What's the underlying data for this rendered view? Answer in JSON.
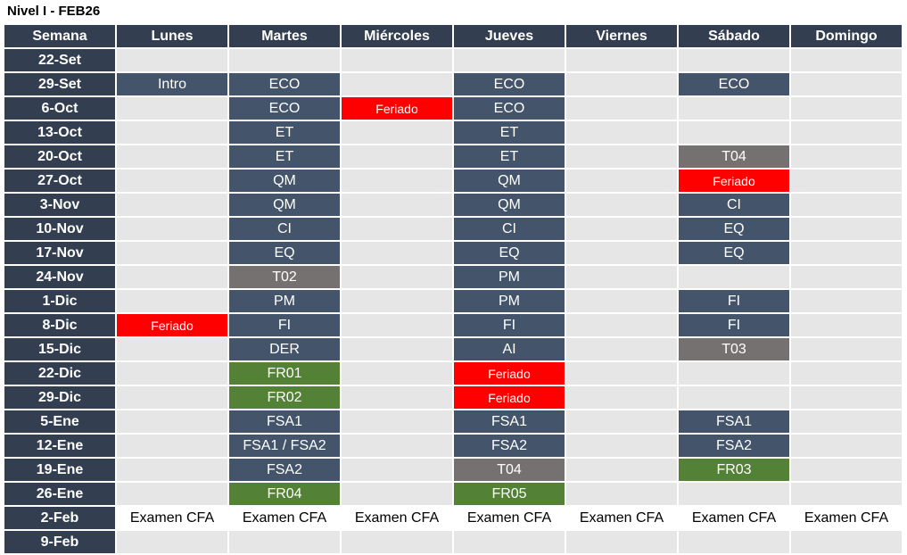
{
  "title": "Nivel I - FEB26",
  "headers": [
    "Semana",
    "Lunes",
    "Martes",
    "Miércoles",
    "Jueves",
    "Viernes",
    "Sábado",
    "Domingo"
  ],
  "colors": {
    "header": "#333f50",
    "class": "#44546a",
    "holiday": "#ff0000",
    "review": "#538135",
    "test": "#767171",
    "empty": "#e6e6e6"
  },
  "rows": [
    {
      "week": "22-Set",
      "cells": [
        null,
        null,
        null,
        null,
        null,
        null,
        null
      ]
    },
    {
      "week": "29-Set",
      "cells": [
        {
          "t": "Intro",
          "s": "blue"
        },
        {
          "t": "ECO",
          "s": "blue"
        },
        null,
        {
          "t": "ECO",
          "s": "blue"
        },
        null,
        {
          "t": "ECO",
          "s": "blue"
        },
        null
      ]
    },
    {
      "week": "6-Oct",
      "cells": [
        null,
        {
          "t": "ECO",
          "s": "blue"
        },
        {
          "t": "Feriado",
          "s": "red"
        },
        {
          "t": "ECO",
          "s": "blue"
        },
        null,
        null,
        null
      ]
    },
    {
      "week": "13-Oct",
      "cells": [
        null,
        {
          "t": "ET",
          "s": "blue"
        },
        null,
        {
          "t": "ET",
          "s": "blue"
        },
        null,
        null,
        null
      ]
    },
    {
      "week": "20-Oct",
      "cells": [
        null,
        {
          "t": "ET",
          "s": "blue"
        },
        null,
        {
          "t": "ET",
          "s": "blue"
        },
        null,
        {
          "t": "T04",
          "s": "gray"
        },
        null
      ]
    },
    {
      "week": "27-Oct",
      "cells": [
        null,
        {
          "t": "QM",
          "s": "blue"
        },
        null,
        {
          "t": "QM",
          "s": "blue"
        },
        null,
        {
          "t": "Feriado",
          "s": "red"
        },
        null
      ]
    },
    {
      "week": "3-Nov",
      "cells": [
        null,
        {
          "t": "QM",
          "s": "blue"
        },
        null,
        {
          "t": "QM",
          "s": "blue"
        },
        null,
        {
          "t": "CI",
          "s": "blue"
        },
        null
      ]
    },
    {
      "week": "10-Nov",
      "cells": [
        null,
        {
          "t": "CI",
          "s": "blue"
        },
        null,
        {
          "t": "CI",
          "s": "blue"
        },
        null,
        {
          "t": "EQ",
          "s": "blue"
        },
        null
      ]
    },
    {
      "week": "17-Nov",
      "cells": [
        null,
        {
          "t": "EQ",
          "s": "blue"
        },
        null,
        {
          "t": "EQ",
          "s": "blue"
        },
        null,
        {
          "t": "EQ",
          "s": "blue"
        },
        null
      ]
    },
    {
      "week": "24-Nov",
      "cells": [
        null,
        {
          "t": "T02",
          "s": "gray"
        },
        null,
        {
          "t": "PM",
          "s": "blue"
        },
        null,
        null,
        null
      ]
    },
    {
      "week": "1-Dic",
      "cells": [
        null,
        {
          "t": "PM",
          "s": "blue"
        },
        null,
        {
          "t": "PM",
          "s": "blue"
        },
        null,
        {
          "t": "FI",
          "s": "blue"
        },
        null
      ]
    },
    {
      "week": "8-Dic",
      "cells": [
        {
          "t": "Feriado",
          "s": "red"
        },
        {
          "t": "FI",
          "s": "blue"
        },
        null,
        {
          "t": "FI",
          "s": "blue"
        },
        null,
        {
          "t": "FI",
          "s": "blue"
        },
        null
      ]
    },
    {
      "week": "15-Dic",
      "cells": [
        null,
        {
          "t": "DER",
          "s": "blue"
        },
        null,
        {
          "t": "AI",
          "s": "blue"
        },
        null,
        {
          "t": "T03",
          "s": "gray"
        },
        null
      ]
    },
    {
      "week": "22-Dic",
      "cells": [
        null,
        {
          "t": "FR01",
          "s": "green"
        },
        null,
        {
          "t": "Feriado",
          "s": "red"
        },
        null,
        null,
        null
      ]
    },
    {
      "week": "29-Dic",
      "cells": [
        null,
        {
          "t": "FR02",
          "s": "green"
        },
        null,
        {
          "t": "Feriado",
          "s": "red"
        },
        null,
        null,
        null
      ]
    },
    {
      "week": "5-Ene",
      "cells": [
        null,
        {
          "t": "FSA1",
          "s": "blue"
        },
        null,
        {
          "t": "FSA1",
          "s": "blue"
        },
        null,
        {
          "t": "FSA1",
          "s": "blue"
        },
        null
      ]
    },
    {
      "week": "12-Ene",
      "cells": [
        null,
        {
          "t": "FSA1 / FSA2",
          "s": "blue"
        },
        null,
        {
          "t": "FSA2",
          "s": "blue"
        },
        null,
        {
          "t": "FSA2",
          "s": "blue"
        },
        null
      ]
    },
    {
      "week": "19-Ene",
      "cells": [
        null,
        {
          "t": "FSA2",
          "s": "blue"
        },
        null,
        {
          "t": "T04",
          "s": "gray"
        },
        null,
        {
          "t": "FR03",
          "s": "green"
        },
        null
      ]
    },
    {
      "week": "26-Ene",
      "cells": [
        null,
        {
          "t": "FR04",
          "s": "green"
        },
        null,
        {
          "t": "FR05",
          "s": "green"
        },
        null,
        null,
        null
      ]
    },
    {
      "week": "2-Feb",
      "cells": [
        {
          "t": "Examen CFA",
          "s": "white"
        },
        {
          "t": "Examen CFA",
          "s": "white"
        },
        {
          "t": "Examen CFA",
          "s": "white"
        },
        {
          "t": "Examen CFA",
          "s": "white"
        },
        {
          "t": "Examen CFA",
          "s": "white"
        },
        {
          "t": "Examen CFA",
          "s": "white"
        },
        {
          "t": "Examen CFA",
          "s": "white"
        }
      ]
    },
    {
      "week": "9-Feb",
      "cells": [
        null,
        null,
        null,
        null,
        null,
        null,
        null
      ]
    }
  ]
}
